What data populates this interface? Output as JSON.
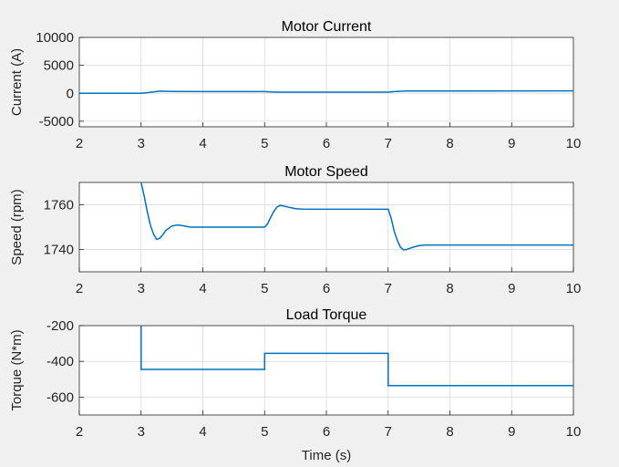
{
  "figure": {
    "background": "#f0f0f0",
    "axes_background": "#ffffff",
    "line_color": "#0072bd",
    "grid_color": "#e0e0e0"
  },
  "chart_data": [
    {
      "type": "line",
      "title": "Motor Current",
      "xlabel": "",
      "ylabel": "Current (A)",
      "xlim": [
        2,
        10
      ],
      "ylim": [
        -6000,
        10000
      ],
      "xticks": [
        2,
        3,
        4,
        5,
        6,
        7,
        8,
        9,
        10
      ],
      "yticks": [
        -5000,
        0,
        5000,
        10000
      ],
      "grid": true,
      "series": [
        {
          "x": [
            2,
            3,
            3.1,
            3.2,
            3.3,
            3.5,
            4,
            5,
            5.1,
            5.2,
            5.4,
            6,
            7,
            7.1,
            7.3,
            8,
            10
          ],
          "y": [
            0,
            0,
            100,
            250,
            380,
            330,
            300,
            300,
            230,
            200,
            200,
            200,
            200,
            300,
            420,
            420,
            430
          ]
        }
      ]
    },
    {
      "type": "line",
      "title": "Motor Speed",
      "xlabel": "",
      "ylabel": "Speed (rpm)",
      "xlim": [
        2,
        10
      ],
      "ylim": [
        1730,
        1770
      ],
      "xticks": [
        2,
        3,
        4,
        5,
        6,
        7,
        8,
        9,
        10
      ],
      "yticks": [
        1740,
        1760
      ],
      "grid": true,
      "series": [
        {
          "x": [
            3.0,
            3.05,
            3.1,
            3.15,
            3.2,
            3.25,
            3.3,
            3.35,
            3.4,
            3.5,
            3.6,
            3.7,
            3.8,
            4.0,
            5.0,
            5.05,
            5.1,
            5.15,
            5.2,
            5.25,
            5.3,
            5.4,
            5.5,
            5.6,
            5.8,
            6.0,
            7.0,
            7.05,
            7.1,
            7.15,
            7.2,
            7.25,
            7.3,
            7.4,
            7.5,
            7.6,
            7.8,
            8.0,
            10.0
          ],
          "y": [
            1770,
            1764,
            1757,
            1751,
            1747,
            1744.5,
            1745,
            1746.5,
            1748.5,
            1750.5,
            1751,
            1750.5,
            1750,
            1750,
            1750,
            1751.5,
            1754.5,
            1757,
            1759,
            1759.7,
            1759.5,
            1758.8,
            1758.3,
            1758.1,
            1758,
            1758,
            1758,
            1754,
            1748,
            1744,
            1741,
            1739.8,
            1740,
            1741,
            1741.7,
            1742,
            1742,
            1742,
            1742
          ]
        }
      ]
    },
    {
      "type": "line",
      "title": "Load Torque",
      "xlabel": "Time (s)",
      "ylabel": "Torque (N*m)",
      "xlim": [
        2,
        10
      ],
      "ylim": [
        -700,
        -200
      ],
      "xticks": [
        2,
        3,
        4,
        5,
        6,
        7,
        8,
        9,
        10
      ],
      "yticks": [
        -600,
        -400,
        -200
      ],
      "grid": true,
      "series": [
        {
          "x": [
            3,
            3,
            5,
            5,
            7,
            7,
            10
          ],
          "y": [
            -200,
            -445,
            -445,
            -355,
            -355,
            -535,
            -535
          ]
        }
      ]
    }
  ]
}
